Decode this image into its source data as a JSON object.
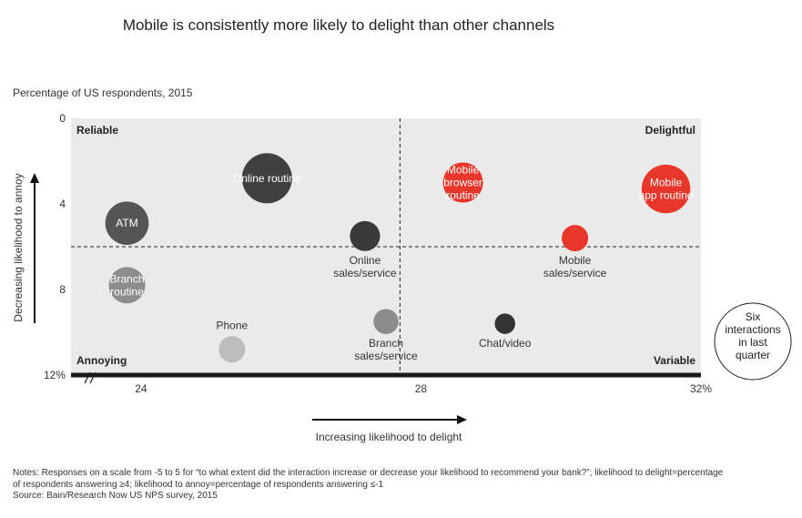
{
  "title": "Mobile is consistently more likely to delight than other channels",
  "subtitle": "Percentage of US respondents, 2015",
  "chart_data": {
    "type": "scatter",
    "x_axis": {
      "label": "Increasing likelihood to delight",
      "range": [
        23,
        32
      ],
      "ticks": [
        {
          "value": 24,
          "label": "24"
        },
        {
          "value": 28,
          "label": "28"
        },
        {
          "value": 32,
          "label": "32%"
        }
      ]
    },
    "y_axis": {
      "label": "Decreasing likelihood to annoy",
      "range": [
        0,
        12
      ],
      "reversed": true,
      "ticks": [
        {
          "value": 0,
          "label": "0"
        },
        {
          "value": 4,
          "label": "4"
        },
        {
          "value": 8,
          "label": "8"
        },
        {
          "value": 12,
          "label": "12%"
        }
      ]
    },
    "dividers": {
      "x": 27.7,
      "y": 6.0
    },
    "quadrants": {
      "top_left": "Reliable",
      "top_right": "Delightful",
      "bottom_left": "Annoying",
      "bottom_right": "Variable"
    },
    "size_legend": [
      "Six",
      "interactions",
      "in last",
      "quarter"
    ],
    "points": [
      {
        "name": "Online routine",
        "label": [
          "Online routine"
        ],
        "x": 25.8,
        "y": 2.8,
        "size": 3.6,
        "color": "#404040",
        "label_pos": "inside",
        "label_color": "#ffffff"
      },
      {
        "name": "ATM",
        "label": [
          "ATM"
        ],
        "x": 23.8,
        "y": 4.9,
        "size": 2.7,
        "color": "#555555",
        "label_pos": "inside",
        "label_color": "#ffffff"
      },
      {
        "name": "Branch routine",
        "label": [
          "Branch",
          "routine"
        ],
        "x": 23.8,
        "y": 7.8,
        "size": 1.9,
        "color": "#8c8c8c",
        "label_pos": "inside",
        "label_color": "#ffffff"
      },
      {
        "name": "Mobile browser routine",
        "label": [
          "Mobile",
          "browser",
          "routine"
        ],
        "x": 28.6,
        "y": 3.0,
        "size": 2.3,
        "color": "#e8362a",
        "label_pos": "inside",
        "label_color": "#ffffff"
      },
      {
        "name": "Mobile app routine",
        "label": [
          "Mobile",
          "app routine"
        ],
        "x": 31.5,
        "y": 3.3,
        "size": 3.4,
        "color": "#e8362a",
        "label_pos": "inside",
        "label_color": "#ffffff"
      },
      {
        "name": "Online sales/service",
        "label": [
          "Online",
          "sales/service"
        ],
        "x": 27.2,
        "y": 5.5,
        "size": 1.3,
        "color": "#3a3a3a",
        "label_pos": "below",
        "label_color": "#333333"
      },
      {
        "name": "Mobile sales/service",
        "label": [
          "Mobile",
          "sales/service"
        ],
        "x": 30.2,
        "y": 5.6,
        "size": 1.0,
        "color": "#e8362a",
        "label_pos": "below",
        "label_color": "#333333"
      },
      {
        "name": "Phone",
        "label": [
          "Phone"
        ],
        "x": 25.3,
        "y": 10.8,
        "size": 1.0,
        "color": "#bdbdbd",
        "label_pos": "above",
        "label_color": "#333333"
      },
      {
        "name": "Branch sales/service",
        "label": [
          "Branch",
          "sales/service"
        ],
        "x": 27.5,
        "y": 9.5,
        "size": 0.9,
        "color": "#8c8c8c",
        "label_pos": "below",
        "label_color": "#333333"
      },
      {
        "name": "Chat/video",
        "label": [
          "Chat/video"
        ],
        "x": 29.2,
        "y": 9.6,
        "size": 0.6,
        "color": "#333333",
        "label_pos": "below",
        "label_color": "#333333"
      }
    ]
  },
  "notes": {
    "line1": "Notes: Responses on a scale from -5 to 5 for “to what extent did the interaction increase or decrease your likelihood to recommend your bank?”; likelihood to delight=percentage",
    "line2": "of respondents answering ≥4; likelihood to annoy=percentage of respondents answering ≤-1",
    "line3": "Source: Bain/Research Now US NPS survey, 2015"
  }
}
